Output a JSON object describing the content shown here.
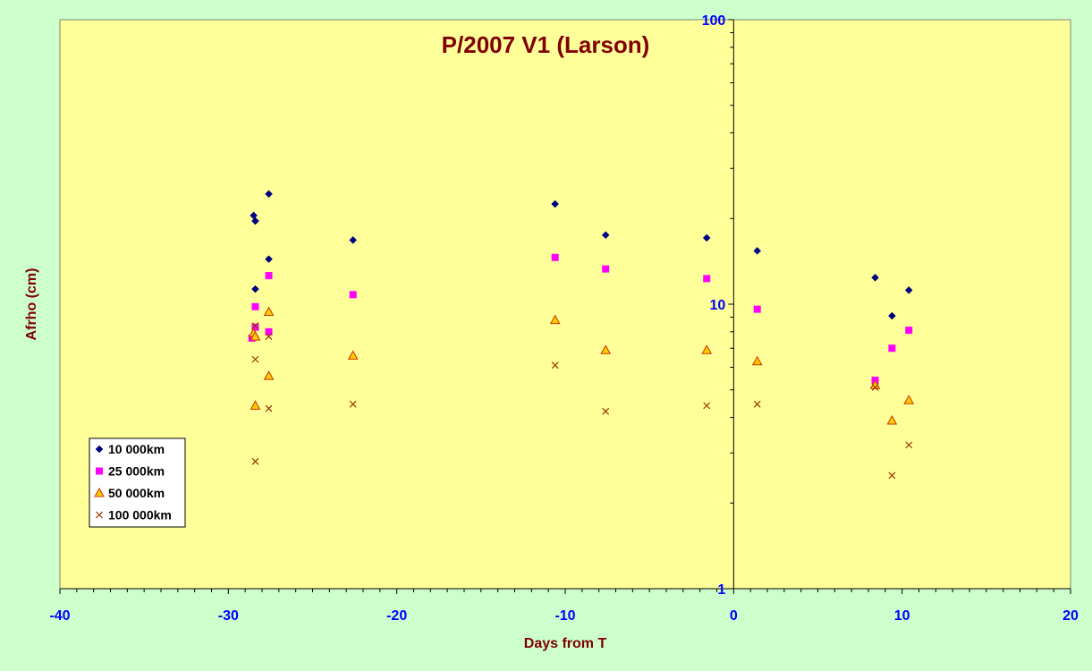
{
  "chart_data": {
    "type": "scatter",
    "title": "P/2007 V1 (Larson)",
    "xlabel": "Days from T",
    "ylabel": "Afrho (cm)",
    "xlim": [
      -40,
      20
    ],
    "ylim": [
      1,
      100
    ],
    "y_scale": "log",
    "x_ticks": [
      -40,
      -30,
      -20,
      -10,
      0,
      10,
      20
    ],
    "y_ticks": [
      1,
      10,
      100
    ],
    "legend_position": "bottom-left",
    "plot_background": "#ffff99",
    "page_background": "#ccffcc",
    "series": [
      {
        "name": "10 000km",
        "marker": "diamond",
        "color": "#000080",
        "points": [
          [
            -28.5,
            20.5
          ],
          [
            -28.4,
            19.6
          ],
          [
            -27.6,
            24.4
          ],
          [
            -27.6,
            14.4
          ],
          [
            -28.4,
            11.3
          ],
          [
            -22.6,
            16.8
          ],
          [
            -10.6,
            22.5
          ],
          [
            -7.6,
            17.5
          ],
          [
            -1.6,
            17.1
          ],
          [
            1.4,
            15.4
          ],
          [
            8.4,
            12.4
          ],
          [
            9.4,
            9.1
          ],
          [
            10.4,
            11.2
          ]
        ]
      },
      {
        "name": "25 000km",
        "marker": "square",
        "color": "#ff00ff",
        "points": [
          [
            -28.4,
            9.8
          ],
          [
            -28.4,
            8.3
          ],
          [
            -28.6,
            7.6
          ],
          [
            -27.6,
            12.6
          ],
          [
            -27.6,
            8.0
          ],
          [
            -22.6,
            10.8
          ],
          [
            -10.6,
            14.6
          ],
          [
            -7.6,
            13.3
          ],
          [
            -1.6,
            12.3
          ],
          [
            1.4,
            9.6
          ],
          [
            8.4,
            5.4
          ],
          [
            9.4,
            7.0
          ],
          [
            10.4,
            8.1
          ]
        ]
      },
      {
        "name": "50 000km",
        "marker": "triangle",
        "color": "#ffcc00",
        "points": [
          [
            -28.5,
            7.9
          ],
          [
            -28.4,
            7.7
          ],
          [
            -27.6,
            9.4
          ],
          [
            -27.6,
            5.6
          ],
          [
            -28.4,
            4.4
          ],
          [
            -22.6,
            6.6
          ],
          [
            -10.6,
            8.8
          ],
          [
            -7.6,
            6.9
          ],
          [
            -1.6,
            6.9
          ],
          [
            1.4,
            6.3
          ],
          [
            8.4,
            5.2
          ],
          [
            9.4,
            3.9
          ],
          [
            10.4,
            4.6
          ]
        ]
      },
      {
        "name": "100 000km",
        "marker": "x",
        "color": "#993300",
        "points": [
          [
            -28.4,
            8.4
          ],
          [
            -27.6,
            7.7
          ],
          [
            -28.4,
            6.4
          ],
          [
            -27.6,
            4.3
          ],
          [
            -28.4,
            2.8
          ],
          [
            -22.6,
            4.45
          ],
          [
            -10.6,
            6.1
          ],
          [
            -7.6,
            4.2
          ],
          [
            -1.6,
            4.4
          ],
          [
            1.4,
            4.45
          ],
          [
            8.4,
            5.1
          ],
          [
            9.4,
            2.5
          ],
          [
            10.4,
            3.2
          ]
        ]
      }
    ]
  }
}
